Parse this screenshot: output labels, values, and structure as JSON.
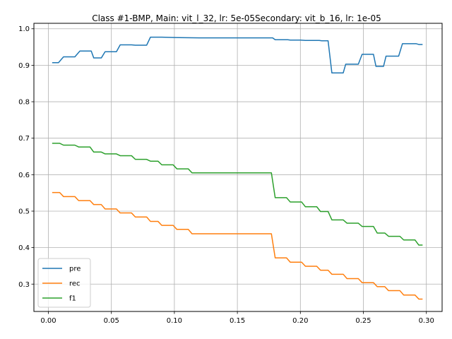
{
  "chart_data": {
    "type": "line",
    "title": "Class #1-BMP, Main: vit_l_32, lr: 5e-05Secondary: vit_b_16, lr: 1e-05",
    "xlabel": "",
    "ylabel": "",
    "xlim": [
      -0.0115,
      0.3125
    ],
    "ylim": [
      0.225,
      1.015
    ],
    "grid": true,
    "legend_position": "lower-left",
    "xticks": [
      0.0,
      0.05,
      0.1,
      0.15,
      0.2,
      0.25,
      0.3
    ],
    "xtick_labels": [
      "0.00",
      "0.05",
      "0.10",
      "0.15",
      "0.20",
      "0.25",
      "0.30"
    ],
    "yticks": [
      0.3,
      0.4,
      0.5,
      0.6,
      0.7,
      0.8,
      0.9,
      1.0
    ],
    "ytick_labels": [
      "0.3",
      "0.4",
      "0.5",
      "0.6",
      "0.7",
      "0.8",
      "0.9",
      "1.0"
    ],
    "series": [
      {
        "name": "pre",
        "color": "#1f77b4",
        "points": [
          [
            0.003,
            0.907
          ],
          [
            0.008,
            0.907
          ],
          [
            0.012,
            0.923
          ],
          [
            0.021,
            0.923
          ],
          [
            0.025,
            0.939
          ],
          [
            0.034,
            0.939
          ],
          [
            0.036,
            0.92
          ],
          [
            0.042,
            0.92
          ],
          [
            0.045,
            0.937
          ],
          [
            0.054,
            0.937
          ],
          [
            0.057,
            0.956
          ],
          [
            0.066,
            0.956
          ],
          [
            0.069,
            0.955
          ],
          [
            0.078,
            0.955
          ],
          [
            0.081,
            0.977
          ],
          [
            0.09,
            0.977
          ],
          [
            0.1,
            0.976
          ],
          [
            0.12,
            0.975
          ],
          [
            0.15,
            0.975
          ],
          [
            0.178,
            0.975
          ],
          [
            0.18,
            0.97
          ],
          [
            0.19,
            0.97
          ],
          [
            0.192,
            0.969
          ],
          [
            0.2,
            0.969
          ],
          [
            0.204,
            0.968
          ],
          [
            0.215,
            0.968
          ],
          [
            0.217,
            0.967
          ],
          [
            0.222,
            0.967
          ],
          [
            0.225,
            0.879
          ],
          [
            0.234,
            0.879
          ],
          [
            0.236,
            0.903
          ],
          [
            0.246,
            0.903
          ],
          [
            0.249,
            0.93
          ],
          [
            0.258,
            0.93
          ],
          [
            0.26,
            0.897
          ],
          [
            0.266,
            0.897
          ],
          [
            0.268,
            0.925
          ],
          [
            0.278,
            0.925
          ],
          [
            0.281,
            0.959
          ],
          [
            0.292,
            0.959
          ],
          [
            0.294,
            0.957
          ],
          [
            0.297,
            0.957
          ]
        ]
      },
      {
        "name": "rec",
        "color": "#ff7f0e",
        "points": [
          [
            0.003,
            0.551
          ],
          [
            0.009,
            0.551
          ],
          [
            0.012,
            0.54
          ],
          [
            0.021,
            0.54
          ],
          [
            0.024,
            0.529
          ],
          [
            0.033,
            0.529
          ],
          [
            0.036,
            0.518
          ],
          [
            0.042,
            0.518
          ],
          [
            0.045,
            0.506
          ],
          [
            0.054,
            0.506
          ],
          [
            0.057,
            0.495
          ],
          [
            0.066,
            0.495
          ],
          [
            0.069,
            0.484
          ],
          [
            0.078,
            0.484
          ],
          [
            0.081,
            0.472
          ],
          [
            0.087,
            0.472
          ],
          [
            0.09,
            0.461
          ],
          [
            0.099,
            0.461
          ],
          [
            0.102,
            0.45
          ],
          [
            0.111,
            0.45
          ],
          [
            0.114,
            0.438
          ],
          [
            0.177,
            0.438
          ],
          [
            0.18,
            0.372
          ],
          [
            0.189,
            0.372
          ],
          [
            0.192,
            0.36
          ],
          [
            0.201,
            0.36
          ],
          [
            0.204,
            0.349
          ],
          [
            0.213,
            0.349
          ],
          [
            0.216,
            0.338
          ],
          [
            0.222,
            0.338
          ],
          [
            0.225,
            0.327
          ],
          [
            0.234,
            0.327
          ],
          [
            0.237,
            0.315
          ],
          [
            0.246,
            0.315
          ],
          [
            0.249,
            0.304
          ],
          [
            0.258,
            0.304
          ],
          [
            0.261,
            0.293
          ],
          [
            0.267,
            0.293
          ],
          [
            0.27,
            0.282
          ],
          [
            0.279,
            0.282
          ],
          [
            0.282,
            0.27
          ],
          [
            0.291,
            0.27
          ],
          [
            0.294,
            0.259
          ],
          [
            0.297,
            0.259
          ]
        ]
      },
      {
        "name": "f1",
        "color": "#2ca02c",
        "points": [
          [
            0.003,
            0.686
          ],
          [
            0.009,
            0.686
          ],
          [
            0.012,
            0.681
          ],
          [
            0.021,
            0.681
          ],
          [
            0.024,
            0.676
          ],
          [
            0.033,
            0.676
          ],
          [
            0.036,
            0.662
          ],
          [
            0.042,
            0.662
          ],
          [
            0.045,
            0.657
          ],
          [
            0.054,
            0.657
          ],
          [
            0.057,
            0.652
          ],
          [
            0.066,
            0.652
          ],
          [
            0.069,
            0.642
          ],
          [
            0.078,
            0.642
          ],
          [
            0.081,
            0.637
          ],
          [
            0.087,
            0.637
          ],
          [
            0.09,
            0.627
          ],
          [
            0.099,
            0.627
          ],
          [
            0.102,
            0.616
          ],
          [
            0.111,
            0.616
          ],
          [
            0.114,
            0.605
          ],
          [
            0.177,
            0.605
          ],
          [
            0.18,
            0.537
          ],
          [
            0.189,
            0.537
          ],
          [
            0.192,
            0.525
          ],
          [
            0.201,
            0.525
          ],
          [
            0.204,
            0.512
          ],
          [
            0.213,
            0.512
          ],
          [
            0.216,
            0.499
          ],
          [
            0.222,
            0.499
          ],
          [
            0.225,
            0.476
          ],
          [
            0.234,
            0.476
          ],
          [
            0.237,
            0.467
          ],
          [
            0.246,
            0.467
          ],
          [
            0.249,
            0.458
          ],
          [
            0.258,
            0.458
          ],
          [
            0.261,
            0.44
          ],
          [
            0.267,
            0.44
          ],
          [
            0.27,
            0.431
          ],
          [
            0.279,
            0.431
          ],
          [
            0.282,
            0.421
          ],
          [
            0.291,
            0.421
          ],
          [
            0.294,
            0.407
          ],
          [
            0.297,
            0.407
          ]
        ]
      }
    ]
  }
}
